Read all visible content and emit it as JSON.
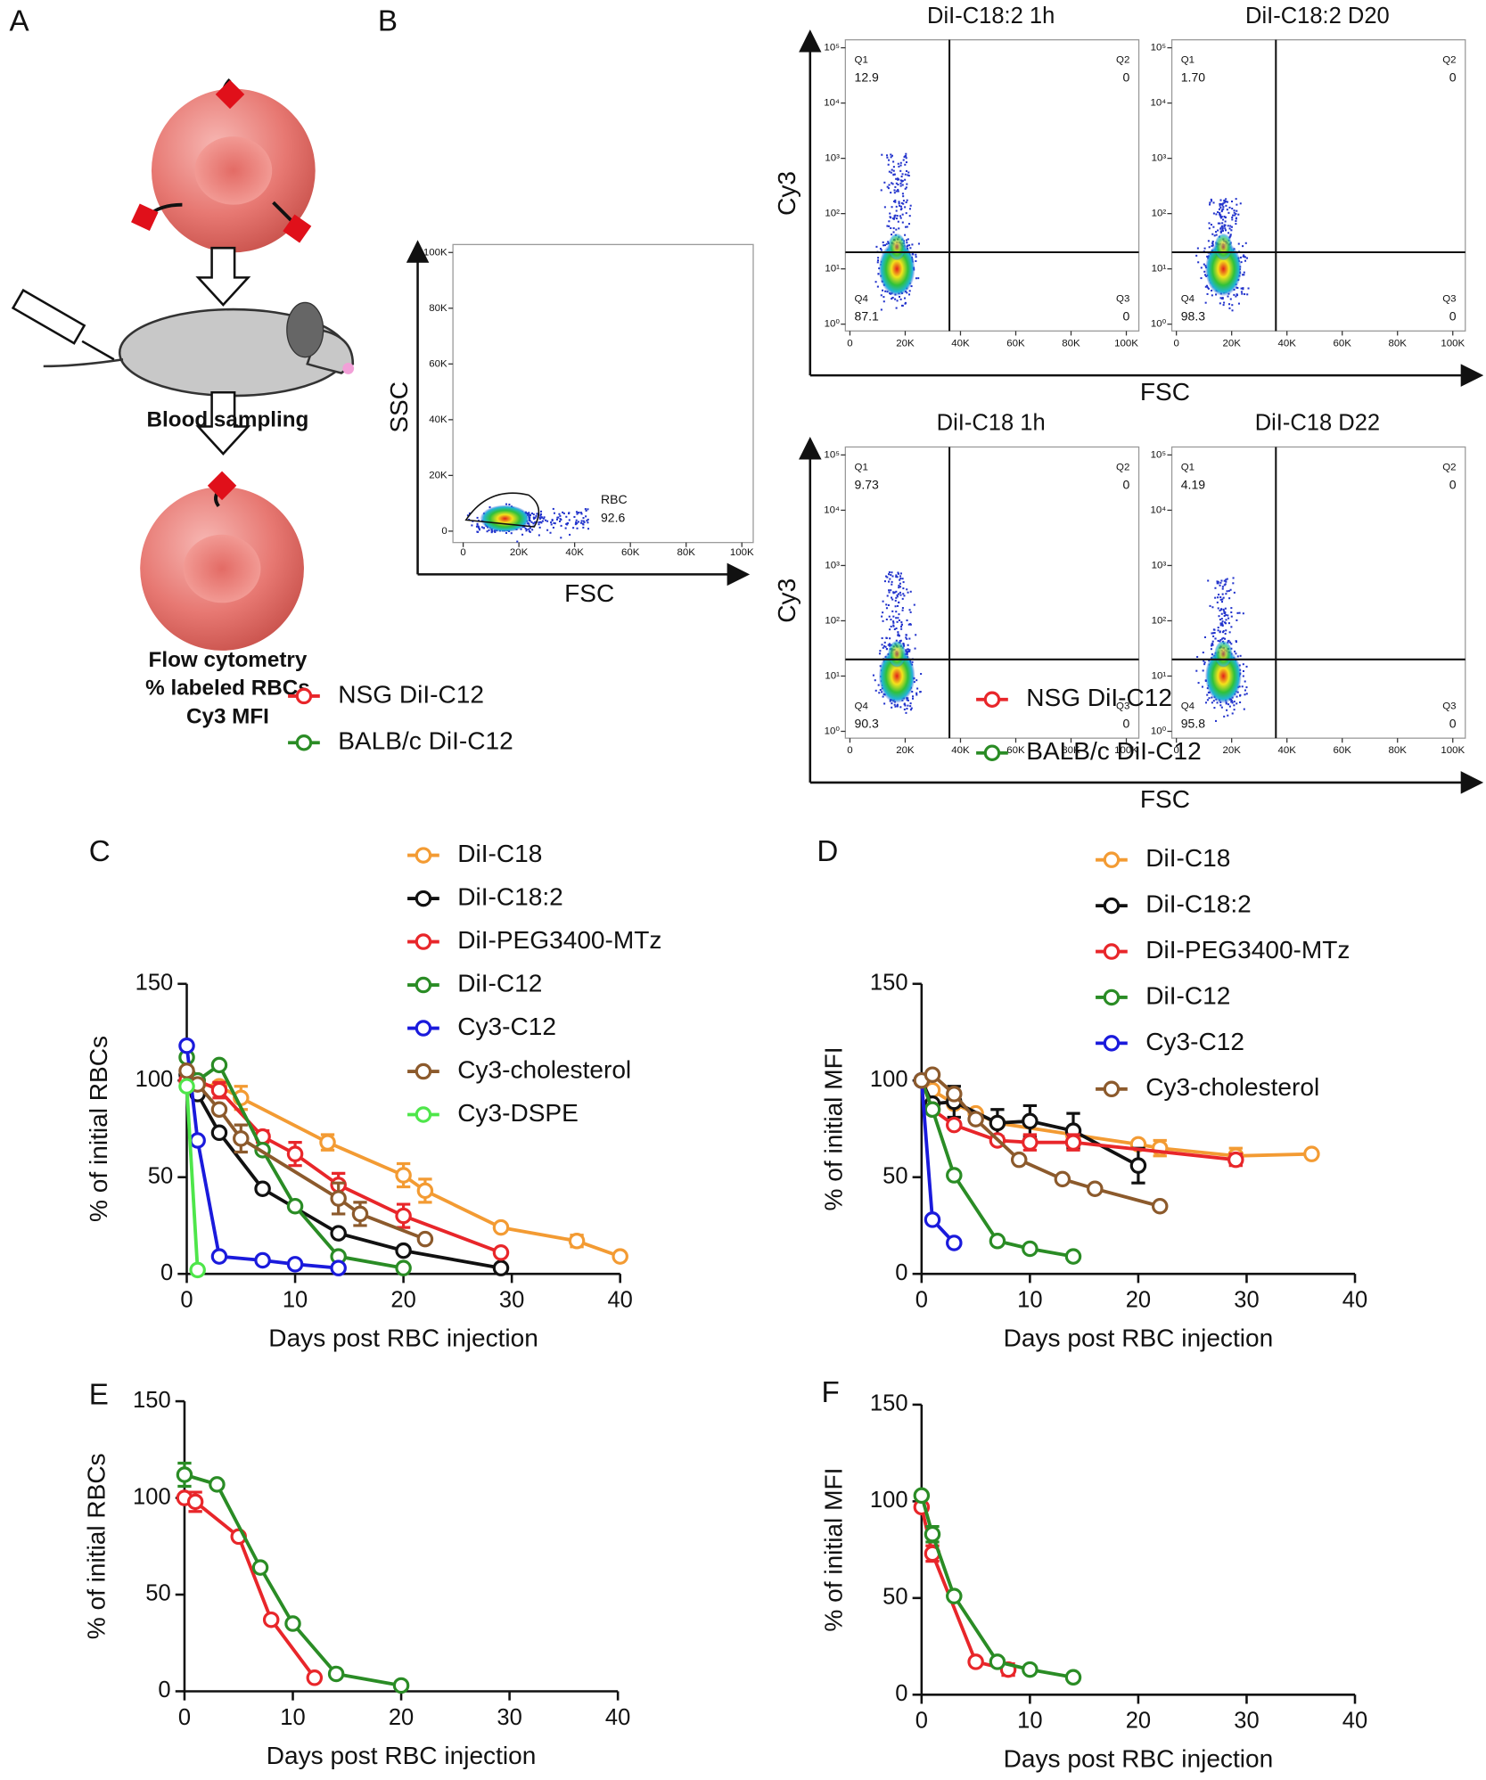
{
  "panel_labels": [
    "A",
    "B",
    "C",
    "D",
    "E",
    "F"
  ],
  "diagram": {
    "sampling": "Blood sampling",
    "readout": [
      "Flow cytometry",
      "% labeled RBCs",
      "Cy3 MFI"
    ]
  },
  "flow": {
    "gating": {
      "x_label": "FSC",
      "y_label": "SSC",
      "gate": "RBC",
      "gate_value": "92.6",
      "xticks": [
        0,
        {
          "value": 20000,
          "label": "20K"
        },
        {
          "value": 40000,
          "label": "40K"
        },
        {
          "value": 60000,
          "label": "60K"
        },
        {
          "value": 80000,
          "label": "80K"
        },
        {
          "value": 100000,
          "label": "100K"
        }
      ],
      "yticks": [
        0,
        {
          "value": 20000,
          "label": "20K"
        },
        {
          "value": 40000,
          "label": "40K"
        },
        {
          "value": 60000,
          "label": "60K"
        },
        {
          "value": 80000,
          "label": "80K"
        },
        {
          "value": 100000,
          "label": "100K"
        }
      ]
    },
    "quadrants": {
      "x_label": "FSC",
      "y_label": "Cy3",
      "xticks": [
        0,
        {
          "value": 20000,
          "label": "20K"
        },
        {
          "value": 40000,
          "label": "40K"
        },
        {
          "value": 60000,
          "label": "60K"
        },
        {
          "value": 80000,
          "label": "80K"
        },
        {
          "value": 100000,
          "label": "100K"
        }
      ],
      "yticks": [
        {
          "value": 1,
          "label": "10⁰"
        },
        {
          "value": 10,
          "label": "10¹"
        },
        {
          "value": 100,
          "label": "10²"
        },
        {
          "value": 1000,
          "label": "10³"
        },
        {
          "value": 10000,
          "label": "10⁴"
        },
        {
          "value": 100000,
          "label": "10⁵"
        }
      ],
      "plots": [
        {
          "title": "DiI-C18:2 1h",
          "q": [
            {
              "name": "Q1",
              "value": "12.9"
            },
            {
              "name": "Q2",
              "value": "0"
            },
            {
              "name": "Q3",
              "value": "0"
            },
            {
              "name": "Q4",
              "value": "87.1"
            }
          ]
        },
        {
          "title": "DiI-C18:2 D20",
          "q": [
            {
              "name": "Q1",
              "value": "1.70"
            },
            {
              "name": "Q2",
              "value": "0"
            },
            {
              "name": "Q3",
              "value": "0"
            },
            {
              "name": "Q4",
              "value": "98.3"
            }
          ]
        },
        {
          "title": "DiI-C18 1h",
          "q": [
            {
              "name": "Q1",
              "value": "9.73"
            },
            {
              "name": "Q2",
              "value": "0"
            },
            {
              "name": "Q3",
              "value": "0"
            },
            {
              "name": "Q4",
              "value": "90.3"
            }
          ]
        },
        {
          "title": "DiI-C18 D22",
          "q": [
            {
              "name": "Q1",
              "value": "4.19"
            },
            {
              "name": "Q2",
              "value": "0"
            },
            {
              "name": "Q3",
              "value": "0"
            },
            {
              "name": "Q4",
              "value": "95.8"
            }
          ]
        }
      ]
    }
  },
  "chart_data": [
    {
      "type": "line",
      "x_label": "Days post RBC injection",
      "y_label": "% of initial RBCs",
      "xlim": [
        0,
        40
      ],
      "ylim": [
        0,
        150
      ],
      "xticks": [
        0,
        10,
        20,
        30,
        40
      ],
      "yticks": [
        0,
        50,
        100,
        150
      ],
      "series": [
        {
          "name": "DiI-C18",
          "color": "#f39b33",
          "x": [
            0,
            1,
            3,
            5,
            13,
            20,
            22,
            29,
            36,
            40
          ],
          "values": [
            100,
            98,
            97,
            91,
            68,
            51,
            43,
            24,
            17,
            9
          ],
          "errors": [
            null,
            null,
            null,
            6,
            4,
            6,
            6,
            null,
            3,
            null
          ]
        },
        {
          "name": "DiI-C18:2",
          "color": "#111111",
          "x": [
            0,
            1,
            3,
            7,
            14,
            20,
            29
          ],
          "values": [
            103,
            93,
            73,
            44,
            21,
            12,
            3
          ],
          "errors": [
            null,
            null,
            null,
            null,
            null,
            null,
            null
          ]
        },
        {
          "name": "DiI-PEG3400-MTz",
          "color": "#e8262a",
          "x": [
            0,
            1,
            3,
            7,
            10,
            14,
            20,
            29
          ],
          "values": [
            100,
            100,
            95,
            71,
            62,
            46,
            30,
            11
          ],
          "errors": [
            null,
            null,
            4,
            3,
            6,
            6,
            6,
            null
          ]
        },
        {
          "name": "DiI-C12",
          "color": "#2a8c25",
          "x": [
            0,
            1,
            3,
            7,
            10,
            14,
            20
          ],
          "values": [
            112,
            100,
            108,
            64,
            35,
            9,
            3
          ],
          "errors": [
            6,
            null,
            null,
            null,
            null,
            null,
            null
          ]
        },
        {
          "name": "Cy3-C12",
          "color": "#1a1adc",
          "x": [
            0,
            1,
            3,
            7,
            10,
            14
          ],
          "values": [
            118,
            69,
            9,
            7,
            5,
            3
          ],
          "errors": [
            null,
            null,
            null,
            null,
            null,
            null
          ]
        },
        {
          "name": "Cy3-cholesterol",
          "color": "#8c5a2c",
          "x": [
            0,
            1,
            3,
            5,
            14,
            16,
            22
          ],
          "values": [
            105,
            98,
            85,
            70,
            39,
            31,
            18
          ],
          "errors": [
            null,
            null,
            null,
            7,
            8,
            6,
            null
          ]
        },
        {
          "name": "Cy3-DSPE",
          "color": "#4ee64a",
          "x": [
            0,
            1
          ],
          "values": [
            97,
            2
          ],
          "errors": [
            null,
            null
          ]
        }
      ]
    },
    {
      "type": "line",
      "x_label": "Days post RBC injection",
      "y_label": "% of initial MFI",
      "xlim": [
        0,
        40
      ],
      "ylim": [
        0,
        150
      ],
      "xticks": [
        0,
        10,
        20,
        30,
        40
      ],
      "yticks": [
        0,
        50,
        100,
        150
      ],
      "series": [
        {
          "name": "DiI-C18",
          "color": "#f39b33",
          "x": [
            0,
            1,
            3,
            5,
            7,
            14,
            20,
            22,
            29,
            36
          ],
          "values": [
            100,
            95,
            88,
            83,
            78,
            72,
            67,
            65,
            61,
            62
          ],
          "errors": [
            null,
            null,
            null,
            null,
            null,
            null,
            null,
            4,
            4,
            null
          ]
        },
        {
          "name": "DiI-C18:2",
          "color": "#111111",
          "x": [
            0,
            1,
            3,
            7,
            10,
            14,
            20
          ],
          "values": [
            100,
            88,
            89,
            78,
            79,
            74,
            56
          ],
          "errors": [
            null,
            null,
            8,
            7,
            8,
            9,
            9
          ]
        },
        {
          "name": "DiI-PEG3400-MTz",
          "color": "#e8262a",
          "x": [
            0,
            1,
            3,
            7,
            10,
            14,
            29
          ],
          "values": [
            100,
            85,
            77,
            69,
            68,
            68,
            59
          ],
          "errors": [
            null,
            null,
            null,
            null,
            4,
            4,
            3
          ]
        },
        {
          "name": "DiI-C12",
          "color": "#2a8c25",
          "x": [
            0,
            1,
            3,
            7,
            10,
            14
          ],
          "values": [
            100,
            85,
            51,
            17,
            13,
            9
          ],
          "errors": [
            null,
            null,
            null,
            null,
            null,
            null
          ]
        },
        {
          "name": "Cy3-C12",
          "color": "#1a1adc",
          "x": [
            0,
            1,
            3
          ],
          "values": [
            100,
            28,
            16
          ],
          "errors": [
            null,
            null,
            null
          ]
        },
        {
          "name": "Cy3-cholesterol",
          "color": "#8c5a2c",
          "x": [
            0,
            1,
            3,
            5,
            9,
            13,
            16,
            22
          ],
          "values": [
            100,
            103,
            93,
            80,
            59,
            49,
            44,
            35
          ],
          "errors": [
            null,
            null,
            null,
            null,
            null,
            null,
            null,
            null
          ]
        }
      ]
    },
    {
      "type": "line",
      "x_label": "Days post RBC injection",
      "y_label": "% of initial RBCs",
      "xlim": [
        0,
        40
      ],
      "ylim": [
        0,
        150
      ],
      "xticks": [
        0,
        10,
        20,
        30,
        40
      ],
      "yticks": [
        0,
        50,
        100,
        150
      ],
      "series": [
        {
          "name": "NSG DiI-C12",
          "color": "#e8262a",
          "x": [
            0,
            1,
            5,
            8,
            12
          ],
          "values": [
            100,
            98,
            80,
            37,
            7
          ],
          "errors": [
            null,
            5,
            null,
            null,
            null
          ]
        },
        {
          "name": "BALB/c DiI-C12",
          "color": "#2a8c25",
          "x": [
            0,
            3,
            7,
            10,
            14,
            20
          ],
          "values": [
            112,
            107,
            64,
            35,
            9,
            3
          ],
          "errors": [
            6,
            null,
            null,
            null,
            null,
            null
          ]
        }
      ]
    },
    {
      "type": "line",
      "x_label": "Days post RBC injection",
      "y_label": "% of initial MFI",
      "xlim": [
        0,
        40
      ],
      "ylim": [
        0,
        150
      ],
      "xticks": [
        0,
        10,
        20,
        30,
        40
      ],
      "yticks": [
        0,
        50,
        100,
        150
      ],
      "series": [
        {
          "name": "NSG DiI-C12",
          "color": "#e8262a",
          "x": [
            0,
            1,
            5,
            8
          ],
          "values": [
            97,
            73,
            17,
            13
          ],
          "errors": [
            null,
            4,
            null,
            3
          ]
        },
        {
          "name": "BALB/c DiI-C12",
          "color": "#2a8c25",
          "x": [
            0,
            1,
            3,
            7,
            10,
            14
          ],
          "values": [
            103,
            83,
            51,
            17,
            13,
            9
          ],
          "errors": [
            null,
            4,
            null,
            null,
            null,
            null
          ]
        }
      ]
    }
  ]
}
